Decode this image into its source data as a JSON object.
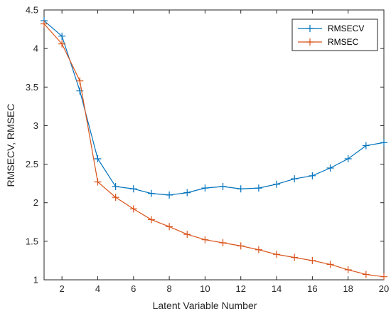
{
  "chart_data": {
    "type": "line",
    "title": "",
    "xlabel": "Latent Variable Number",
    "ylabel": "RMSECV, RMSEC",
    "xlim": [
      1,
      20
    ],
    "ylim": [
      1,
      4.5
    ],
    "xticks": [
      2,
      4,
      6,
      8,
      10,
      12,
      14,
      16,
      18,
      20
    ],
    "yticks": [
      1,
      1.5,
      2,
      2.5,
      3,
      3.5,
      4,
      4.5
    ],
    "grid": false,
    "legend_position": "top-right",
    "x": [
      1,
      2,
      3,
      4,
      5,
      6,
      7,
      8,
      9,
      10,
      11,
      12,
      13,
      14,
      15,
      16,
      17,
      18,
      19,
      20
    ],
    "series": [
      {
        "name": "RMSECV",
        "color": "#0072BD",
        "marker": "plus",
        "values": [
          4.36,
          4.16,
          3.45,
          2.57,
          2.21,
          2.18,
          2.12,
          2.1,
          2.13,
          2.19,
          2.21,
          2.18,
          2.19,
          2.24,
          2.31,
          2.35,
          2.45,
          2.57,
          2.74,
          2.78
        ]
      },
      {
        "name": "RMSEC",
        "color": "#D95319",
        "marker": "plus",
        "values": [
          4.32,
          4.06,
          3.58,
          2.27,
          2.07,
          1.92,
          1.78,
          1.69,
          1.59,
          1.52,
          1.48,
          1.44,
          1.39,
          1.33,
          1.29,
          1.25,
          1.2,
          1.13,
          1.07,
          1.04
        ]
      }
    ]
  }
}
